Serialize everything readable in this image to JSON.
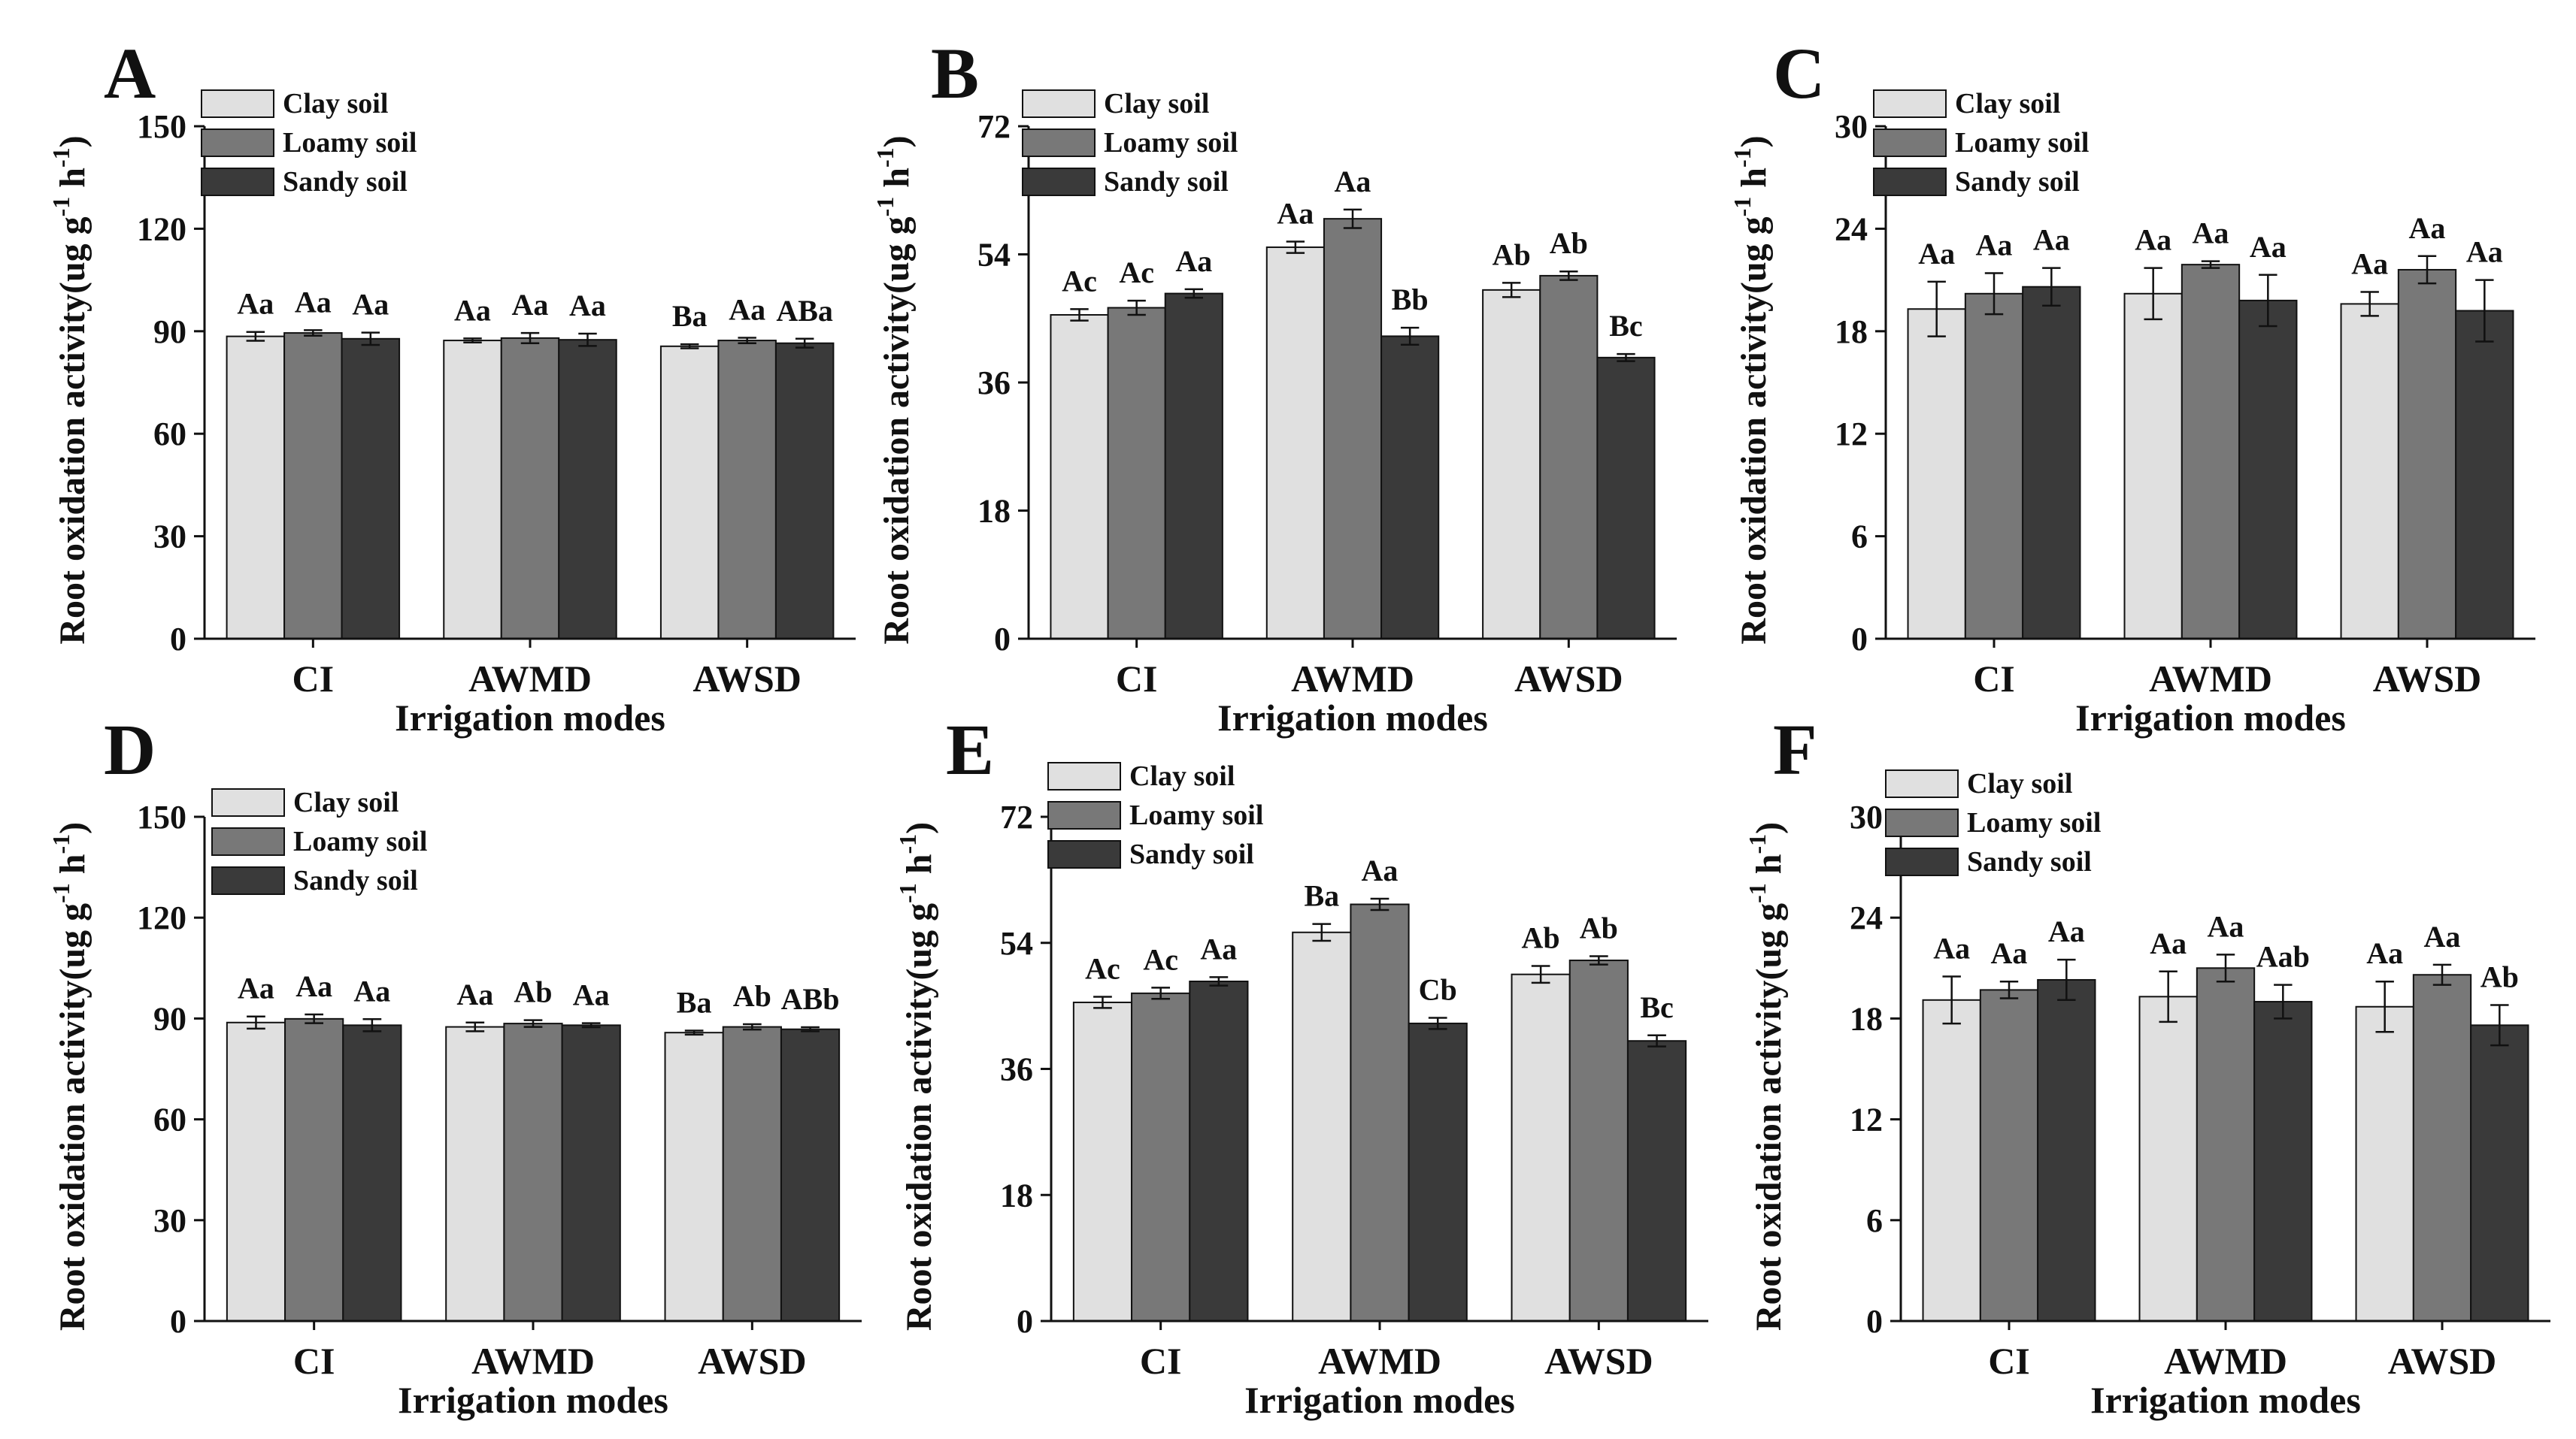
{
  "series_names": [
    "Clay soil",
    "Loamy soil",
    "Sandy soil"
  ],
  "colors": {
    "clay": "#e0e0e0",
    "loamy": "#787878",
    "sandy": "#3a3a3a"
  },
  "chart_data": [
    {
      "panel": "A",
      "type": "bar",
      "categories": [
        "CI",
        "AWMD",
        "AWSD"
      ],
      "xlabel": "Irrigation modes",
      "ylabel_parts": [
        "Root oxidation activity(ug g",
        "-1",
        " h",
        "-1",
        ")"
      ],
      "ylim": [
        0,
        150
      ],
      "yticks": [
        "0",
        "30",
        "60",
        "90",
        "120",
        "150"
      ],
      "series": [
        {
          "name": "Clay soil",
          "values": [
            88.5,
            87.3,
            85.6
          ],
          "errors": [
            1.3,
            0.6,
            0.6
          ],
          "labels": [
            "Aa",
            "Aa",
            "Ba"
          ]
        },
        {
          "name": "Loamy soil",
          "values": [
            89.5,
            88.0,
            87.3
          ],
          "errors": [
            0.8,
            1.5,
            0.8
          ],
          "labels": [
            "Aa",
            "Aa",
            "Aa"
          ]
        },
        {
          "name": "Sandy soil",
          "values": [
            87.8,
            87.5,
            86.5
          ],
          "errors": [
            1.8,
            1.8,
            1.3
          ],
          "labels": [
            "Aa",
            "Aa",
            "ABa"
          ]
        }
      ]
    },
    {
      "panel": "B",
      "type": "bar",
      "categories": [
        "CI",
        "AWMD",
        "AWSD"
      ],
      "xlabel": "Irrigation modes",
      "ylabel_parts": [
        "Root oxidation activity(ug g",
        "-1",
        " h",
        "-1",
        ")"
      ],
      "ylim": [
        0,
        72
      ],
      "yticks": [
        "0",
        "18",
        "36",
        "54",
        "72"
      ],
      "series": [
        {
          "name": "Clay soil",
          "values": [
            45.5,
            55.0,
            49.0
          ],
          "errors": [
            0.8,
            0.8,
            1.0
          ],
          "labels": [
            "Ac",
            "Aa",
            "Ab"
          ]
        },
        {
          "name": "Loamy soil",
          "values": [
            46.5,
            59.0,
            51.0
          ],
          "errors": [
            1.0,
            1.3,
            0.6
          ],
          "labels": [
            "Ac",
            "Aa",
            "Ab"
          ]
        },
        {
          "name": "Sandy soil",
          "values": [
            48.5,
            42.5,
            39.5
          ],
          "errors": [
            0.6,
            1.2,
            0.5
          ],
          "labels": [
            "Aa",
            "Bb",
            "Bc"
          ]
        }
      ]
    },
    {
      "panel": "C",
      "type": "bar",
      "categories": [
        "CI",
        "AWMD",
        "AWSD"
      ],
      "xlabel": "Irrigation modes",
      "ylabel_parts": [
        "Root oxidation activity(ug g",
        "-1",
        " h",
        "-1",
        ")"
      ],
      "ylim": [
        0,
        30
      ],
      "yticks": [
        "0",
        "6",
        "12",
        "18",
        "24",
        "30"
      ],
      "series": [
        {
          "name": "Clay soil",
          "values": [
            19.3,
            20.2,
            19.6
          ],
          "errors": [
            1.6,
            1.5,
            0.7
          ],
          "labels": [
            "Aa",
            "Aa",
            "Aa"
          ]
        },
        {
          "name": "Loamy soil",
          "values": [
            20.2,
            21.9,
            21.6
          ],
          "errors": [
            1.2,
            0.2,
            0.8
          ],
          "labels": [
            "Aa",
            "Aa",
            "Aa"
          ]
        },
        {
          "name": "Sandy soil",
          "values": [
            20.6,
            19.8,
            19.2
          ],
          "errors": [
            1.1,
            1.5,
            1.8
          ],
          "labels": [
            "Aa",
            "Aa",
            "Aa"
          ]
        }
      ]
    },
    {
      "panel": "D",
      "type": "bar",
      "categories": [
        "CI",
        "AWMD",
        "AWSD"
      ],
      "xlabel": "Irrigation modes",
      "ylabel_parts": [
        "Root oxidation activity(ug g",
        "-1",
        " h",
        "-1",
        ")"
      ],
      "ylim": [
        0,
        150
      ],
      "yticks": [
        "0",
        "30",
        "60",
        "90",
        "120",
        "150"
      ],
      "series": [
        {
          "name": "Clay soil",
          "values": [
            88.8,
            87.5,
            85.8
          ],
          "errors": [
            1.8,
            1.3,
            0.6
          ],
          "labels": [
            "Aa",
            "Aa",
            "Ba"
          ]
        },
        {
          "name": "Loamy soil",
          "values": [
            89.9,
            88.5,
            87.5
          ],
          "errors": [
            1.3,
            1.0,
            0.8
          ],
          "labels": [
            "Aa",
            "Ab",
            "Ab"
          ]
        },
        {
          "name": "Sandy soil",
          "values": [
            88.0,
            88.0,
            86.8
          ],
          "errors": [
            1.8,
            0.6,
            0.6
          ],
          "labels": [
            "Aa",
            "Aa",
            "ABb"
          ]
        }
      ]
    },
    {
      "panel": "E",
      "type": "bar",
      "categories": [
        "CI",
        "AWMD",
        "AWSD"
      ],
      "xlabel": "Irrigation modes",
      "ylabel_parts": [
        "Root oxidation activity(ug g",
        "-1",
        " h",
        "-1",
        ")"
      ],
      "ylim": [
        0,
        72
      ],
      "yticks": [
        "0",
        "18",
        "36",
        "54",
        "72"
      ],
      "series": [
        {
          "name": "Clay soil",
          "values": [
            45.5,
            55.5,
            49.5
          ],
          "errors": [
            0.8,
            1.2,
            1.2
          ],
          "labels": [
            "Ac",
            "Ba",
            "Ab"
          ]
        },
        {
          "name": "Loamy soil",
          "values": [
            46.8,
            59.5,
            51.5
          ],
          "errors": [
            0.8,
            0.8,
            0.6
          ],
          "labels": [
            "Ac",
            "Aa",
            "Ab"
          ]
        },
        {
          "name": "Sandy soil",
          "values": [
            48.5,
            42.5,
            40.0
          ],
          "errors": [
            0.6,
            0.8,
            0.8
          ],
          "labels": [
            "Aa",
            "Cb",
            "Bc"
          ]
        }
      ]
    },
    {
      "panel": "F",
      "type": "bar",
      "categories": [
        "CI",
        "AWMD",
        "AWSD"
      ],
      "xlabel": "Irrigation modes",
      "ylabel_parts": [
        "Root oxidation activity(ug g",
        "-1",
        " h",
        "-1",
        ")"
      ],
      "ylim": [
        0,
        30
      ],
      "yticks": [
        "0",
        "6",
        "12",
        "18",
        "24",
        "30"
      ],
      "series": [
        {
          "name": "Clay soil",
          "values": [
            19.1,
            19.3,
            18.7
          ],
          "errors": [
            1.4,
            1.5,
            1.5
          ],
          "labels": [
            "Aa",
            "Aa",
            "Aa"
          ]
        },
        {
          "name": "Loamy soil",
          "values": [
            19.7,
            21.0,
            20.6
          ],
          "errors": [
            0.5,
            0.8,
            0.6
          ],
          "labels": [
            "Aa",
            "Aa",
            "Aa"
          ]
        },
        {
          "name": "Sandy soil",
          "values": [
            20.3,
            19.0,
            17.6
          ],
          "errors": [
            1.2,
            1.0,
            1.2
          ],
          "labels": [
            "Aa",
            "Aab",
            "Ab"
          ]
        }
      ]
    }
  ]
}
